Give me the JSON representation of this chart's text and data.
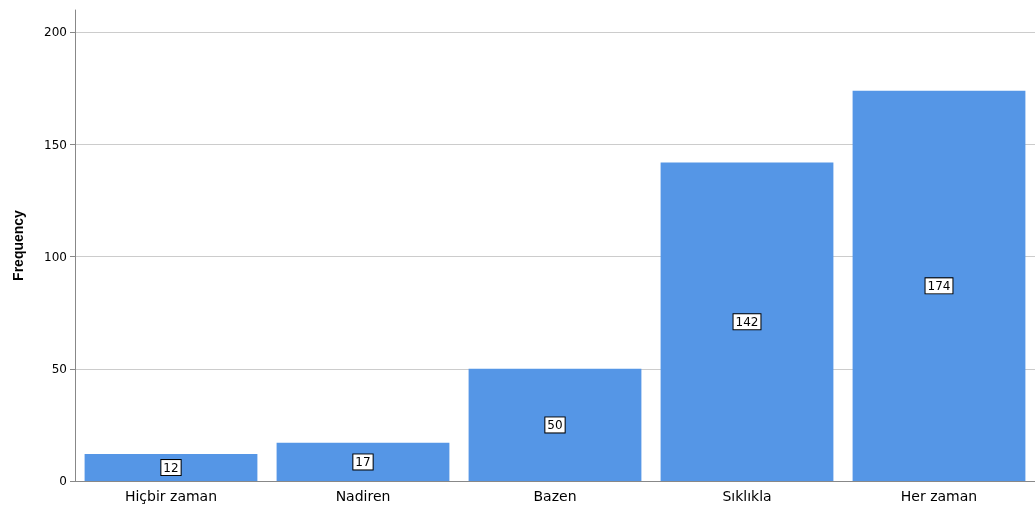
{
  "chart_data": {
    "type": "bar",
    "ylabel": "Frequency",
    "categories": [
      "Hiçbir zaman",
      "Nadiren",
      "Bazen",
      "Sıklıkla",
      "Her zaman"
    ],
    "values": [
      12,
      17,
      50,
      142,
      174
    ],
    "color": "#5596e6",
    "ylim": [
      0,
      210
    ],
    "yticks": [
      0,
      50,
      100,
      150,
      200
    ],
    "grid": "y",
    "data_labels": true
  }
}
